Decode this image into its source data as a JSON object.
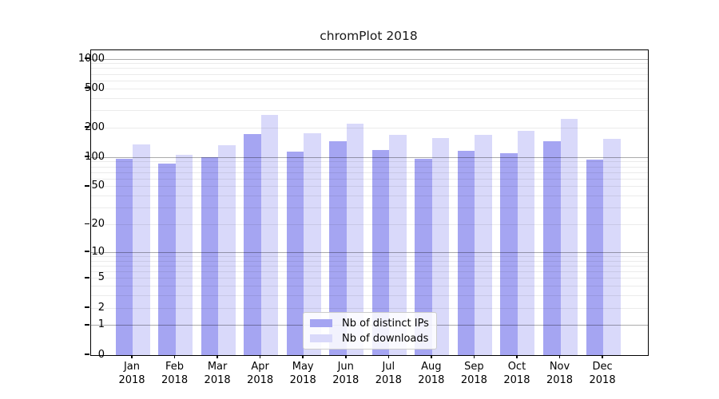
{
  "title": "chromPlot 2018",
  "colors": {
    "distinct_ips_bar": "#a5a5f2",
    "downloads_bar": "#d9d9fa",
    "axis": "#000000",
    "major_gridline": "rgba(0,0,0,0.33)",
    "minor_gridline": "rgba(0,0,0,0.08)",
    "background": "#ffffff"
  },
  "legend": {
    "entries": [
      {
        "label": "Nb of distinct IPs"
      },
      {
        "label": "Nb of downloads"
      }
    ]
  },
  "chart_data": {
    "type": "bar",
    "title": "chromPlot 2018",
    "categories": [
      "Jan",
      "Feb",
      "Mar",
      "Apr",
      "May",
      "Jun",
      "Jul",
      "Aug",
      "Sep",
      "Oct",
      "Nov",
      "Dec"
    ],
    "x_sub_label": "2018",
    "series": [
      {
        "name": "Nb of distinct IPs",
        "color": "#a5a5f2",
        "values": [
          97,
          87,
          100,
          174,
          114,
          146,
          119,
          97,
          117,
          110,
          147,
          95
        ]
      },
      {
        "name": "Nb of downloads",
        "color": "#d9d9fa",
        "values": [
          136,
          107,
          132,
          270,
          175,
          220,
          170,
          157,
          170,
          185,
          245,
          154
        ]
      }
    ],
    "y_ticks": [
      0,
      1,
      2,
      5,
      10,
      20,
      50,
      100,
      200,
      500,
      1000
    ],
    "y_scale": "log10(1+value)",
    "ylim": [
      0,
      1228
    ],
    "xlabel": "",
    "ylabel": "",
    "grid": "horizontal major+minor",
    "legend_position": "inside bottom-center"
  }
}
